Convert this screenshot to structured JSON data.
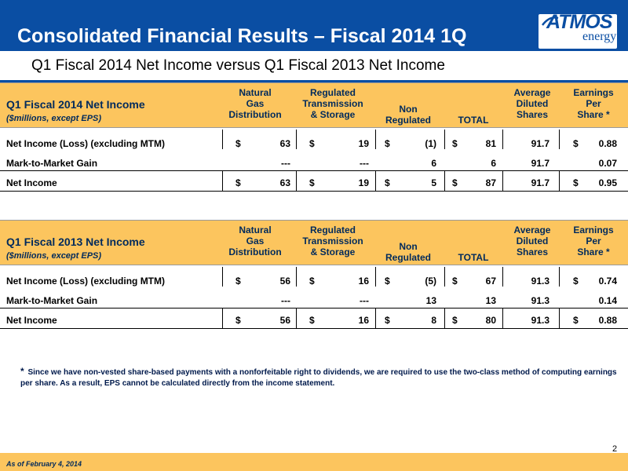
{
  "slide": {
    "title": "Consolidated Financial Results – Fiscal 2014 1Q",
    "subtitle": "Q1 Fiscal 2014 Net Income versus Q1 Fiscal 2013 Net Income",
    "logo_word": "ATMOS",
    "logo_sub": "energy",
    "page_number": "2",
    "footer": "As of February 4, 2014",
    "footnote_star": "*",
    "footnote": "Since we have non-vested share-based payments with a nonforfeitable right to dividends, we are required to use the two-class method of computing earnings per share. As a result, EPS cannot be calculated directly from the income statement."
  },
  "columns": [
    "Natural\nGas\nDistribution",
    "Regulated\nTransmission\n& Storage",
    "Non\nRegulated",
    "TOTAL",
    "Average\nDiluted\nShares",
    "Earnings\nPer\nShare *"
  ],
  "tables": [
    {
      "title": "Q1 Fiscal 2014 Net Income",
      "subtitle": "($millions, except EPS)",
      "rows": [
        {
          "label": "Net Income (Loss) (excluding MTM)",
          "cells": [
            [
              "$",
              "63"
            ],
            [
              "$",
              "19"
            ],
            [
              "$",
              "(1)"
            ],
            [
              "$",
              "81"
            ],
            [
              "",
              "91.7"
            ],
            [
              "$",
              "0.88"
            ]
          ]
        },
        {
          "label": "Mark-to-Market Gain",
          "cells": [
            [
              "",
              "---"
            ],
            [
              "",
              "---"
            ],
            [
              "",
              "6"
            ],
            [
              "",
              "6"
            ],
            [
              "",
              "91.7"
            ],
            [
              "",
              "0.07"
            ]
          ]
        },
        {
          "label": "Net Income",
          "cells": [
            [
              "$",
              "63"
            ],
            [
              "$",
              "19"
            ],
            [
              "$",
              "5"
            ],
            [
              "$",
              "87"
            ],
            [
              "",
              "91.7"
            ],
            [
              "$",
              "0.95"
            ]
          ]
        }
      ]
    },
    {
      "title": "Q1 Fiscal 2013 Net Income",
      "subtitle": "($millions, except EPS)",
      "rows": [
        {
          "label": "Net Income (Loss) (excluding MTM)",
          "cells": [
            [
              "$",
              "56"
            ],
            [
              "$",
              "16"
            ],
            [
              "$",
              "(5)"
            ],
            [
              "$",
              "67"
            ],
            [
              "",
              "91.3"
            ],
            [
              "$",
              "0.74"
            ]
          ]
        },
        {
          "label": "Mark-to-Market Gain",
          "cells": [
            [
              "",
              "---"
            ],
            [
              "",
              "---"
            ],
            [
              "",
              "13"
            ],
            [
              "",
              "13"
            ],
            [
              "",
              "91.3"
            ],
            [
              "",
              "0.14"
            ]
          ]
        },
        {
          "label": "Net Income",
          "cells": [
            [
              "$",
              "56"
            ],
            [
              "$",
              "16"
            ],
            [
              "$",
              "8"
            ],
            [
              "$",
              "80"
            ],
            [
              "",
              "91.3"
            ],
            [
              "$",
              "0.88"
            ]
          ]
        }
      ]
    }
  ],
  "colors": {
    "header_bar": "#0a4ea3",
    "table_header": "#fcc55e",
    "header_text": "#002a5c"
  }
}
